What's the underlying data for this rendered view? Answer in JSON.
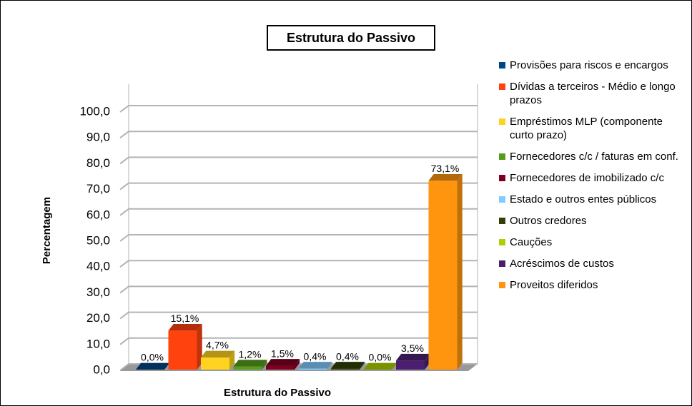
{
  "chart_data": {
    "type": "bar3d",
    "title": "Estrutura do Passivo",
    "x_label": "Estrutura do Passivo",
    "y_label": "Percentagem",
    "ylim": [
      0,
      100
    ],
    "yticks": [
      {
        "value": 0,
        "label": "0,0"
      },
      {
        "value": 10,
        "label": "10,0"
      },
      {
        "value": 20,
        "label": "20,0"
      },
      {
        "value": 30,
        "label": "30,0"
      },
      {
        "value": 40,
        "label": "40,0"
      },
      {
        "value": 50,
        "label": "50,0"
      },
      {
        "value": 60,
        "label": "60,0"
      },
      {
        "value": 70,
        "label": "70,0"
      },
      {
        "value": 80,
        "label": "80,0"
      },
      {
        "value": 90,
        "label": "90,0"
      },
      {
        "value": 100,
        "label": "100,0"
      }
    ],
    "grid": true,
    "legend": "right",
    "series": [
      {
        "name": "Provisões para riscos e encargos",
        "color": "#004586",
        "values": [
          0.0
        ],
        "value_labels": [
          "0,0%"
        ]
      },
      {
        "name": "Dívidas a terceiros - Médio e longo prazos",
        "color": "#ff420e",
        "values": [
          15.1
        ],
        "value_labels": [
          "15,1%"
        ]
      },
      {
        "name": "Empréstimos MLP (componente curto prazo)",
        "color": "#ffd320",
        "values": [
          4.7
        ],
        "value_labels": [
          "4,7%"
        ]
      },
      {
        "name": "Fornecedores c/c  / faturas em conf.",
        "color": "#579d1c",
        "values": [
          1.2
        ],
        "value_labels": [
          "1,2%"
        ]
      },
      {
        "name": "Fornecedores de imobilizado c/c",
        "color": "#7e0021",
        "values": [
          1.5
        ],
        "value_labels": [
          "1,5%"
        ]
      },
      {
        "name": "Estado e outros entes públicos",
        "color": "#83caff",
        "values": [
          0.4
        ],
        "value_labels": [
          "0,4%"
        ]
      },
      {
        "name": "Outros credores",
        "color": "#314004",
        "values": [
          0.4
        ],
        "value_labels": [
          "0,4%"
        ]
      },
      {
        "name": "Cauções",
        "color": "#aecf00",
        "values": [
          0.0
        ],
        "value_labels": [
          "0,0%"
        ]
      },
      {
        "name": "Acréscimos de custos",
        "color": "#4b1f6f",
        "values": [
          3.5
        ],
        "value_labels": [
          "3,5%"
        ]
      },
      {
        "name": "Proveitos diferidos",
        "color": "#ff950e",
        "values": [
          73.1
        ],
        "value_labels": [
          "73,1%"
        ]
      }
    ]
  }
}
